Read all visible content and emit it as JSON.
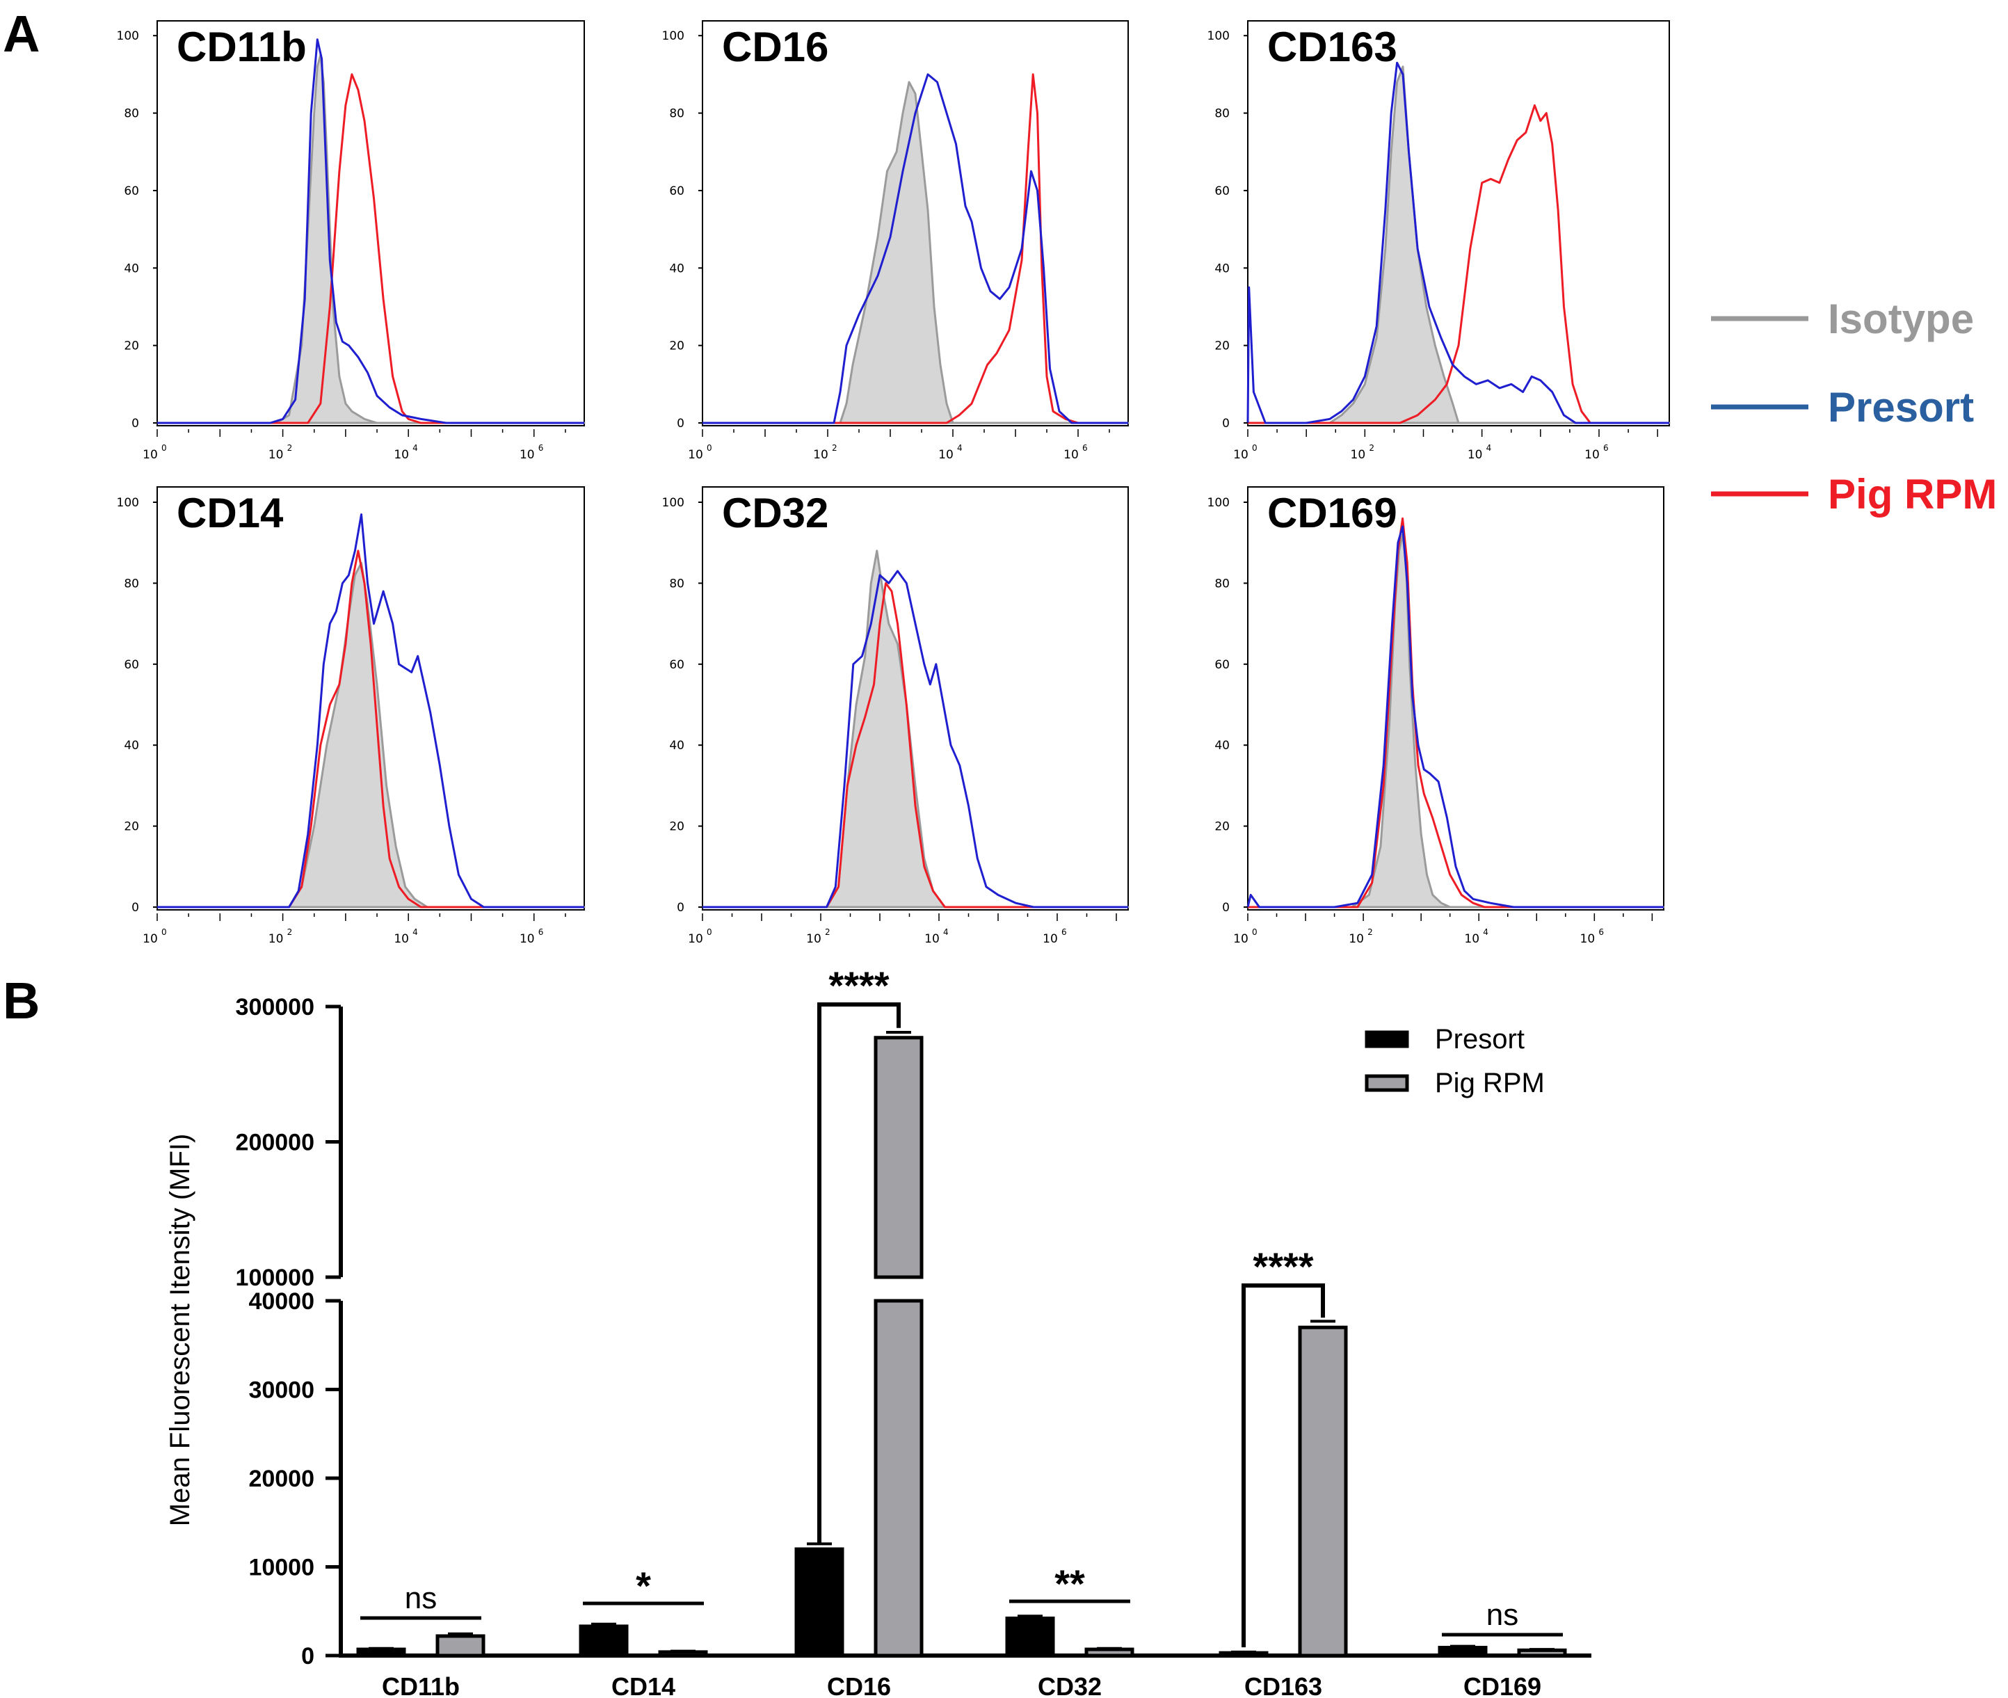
{
  "panel_labels": {
    "a": "A",
    "b": "B"
  },
  "histogram_legend": [
    {
      "label": "Isotype",
      "color": "#999999"
    },
    {
      "label": "Presort",
      "color": "#2a5fa0"
    },
    {
      "label": "Pig RPM",
      "color": "#ee1c24"
    }
  ],
  "colors": {
    "isotype_fill": "#d6d6d6",
    "isotype_line": "#9b9b9b",
    "presort_line": "#1f1fd0",
    "pigrpm_line": "#ee1c24",
    "presort_bar": "#000000",
    "pigrpm_bar": "#a2a2a6"
  },
  "chart_data": [
    {
      "type": "area",
      "panel": "A",
      "title": "CD11b",
      "xscale": "log10",
      "xlim": [
        0,
        6.8
      ],
      "ylim": [
        0,
        100
      ],
      "yticks": [
        "0",
        "20",
        "40",
        "60",
        "80",
        "100"
      ],
      "xticks": [
        {
          "base": "10",
          "exp": "0"
        },
        {
          "base": "10",
          "exp": "2"
        },
        {
          "base": "10",
          "exp": "4"
        },
        {
          "base": "10",
          "exp": "6"
        }
      ],
      "series": [
        {
          "name": "Isotype",
          "x": [
            0,
            1.9,
            2.1,
            2.3,
            2.4,
            2.5,
            2.55,
            2.6,
            2.65,
            2.7,
            2.75,
            2.8,
            2.9,
            3.0,
            3.1,
            3.3,
            3.5,
            6.8
          ],
          "y": [
            0,
            0,
            2,
            20,
            50,
            80,
            92,
            95,
            88,
            70,
            50,
            30,
            12,
            5,
            3,
            1,
            0,
            0
          ]
        },
        {
          "name": "Presort",
          "x": [
            0,
            1.8,
            2.0,
            2.2,
            2.35,
            2.45,
            2.55,
            2.62,
            2.68,
            2.75,
            2.85,
            2.95,
            3.05,
            3.2,
            3.35,
            3.5,
            3.7,
            3.9,
            4.2,
            4.6,
            6.8
          ],
          "y": [
            0,
            0,
            1,
            6,
            32,
            80,
            99,
            94,
            70,
            42,
            26,
            21,
            20,
            17,
            13,
            7,
            4,
            2,
            1,
            0,
            0
          ]
        },
        {
          "name": "Pig RPM",
          "x": [
            0,
            2.4,
            2.6,
            2.75,
            2.9,
            3.0,
            3.1,
            3.2,
            3.3,
            3.45,
            3.6,
            3.75,
            3.9,
            4.0,
            4.2,
            6.8
          ],
          "y": [
            0,
            0,
            5,
            30,
            65,
            82,
            90,
            86,
            78,
            58,
            32,
            12,
            3,
            1,
            0,
            0
          ]
        }
      ]
    },
    {
      "type": "area",
      "panel": "A",
      "title": "CD16",
      "xscale": "log10",
      "xlim": [
        0,
        6.8
      ],
      "ylim": [
        0,
        100
      ],
      "yticks": [
        "0",
        "20",
        "40",
        "60",
        "80",
        "100"
      ],
      "xticks": [
        {
          "base": "10",
          "exp": "0"
        },
        {
          "base": "10",
          "exp": "2"
        },
        {
          "base": "10",
          "exp": "4"
        },
        {
          "base": "10",
          "exp": "6"
        }
      ],
      "series": [
        {
          "name": "Isotype",
          "x": [
            0,
            2.2,
            2.3,
            2.4,
            2.6,
            2.8,
            2.95,
            3.1,
            3.2,
            3.3,
            3.4,
            3.5,
            3.6,
            3.7,
            3.8,
            3.9,
            4.0,
            6.8
          ],
          "y": [
            0,
            0,
            5,
            15,
            30,
            48,
            65,
            70,
            80,
            88,
            85,
            70,
            55,
            30,
            15,
            5,
            0,
            0
          ]
        },
        {
          "name": "Presort",
          "x": [
            0,
            2.1,
            2.2,
            2.3,
            2.5,
            2.8,
            3.0,
            3.2,
            3.4,
            3.6,
            3.75,
            3.9,
            4.05,
            4.2,
            4.3,
            4.45,
            4.6,
            4.75,
            4.9,
            5.1,
            5.25,
            5.35,
            5.45,
            5.55,
            5.7,
            5.9,
            6.8
          ],
          "y": [
            0,
            0,
            8,
            20,
            28,
            38,
            48,
            65,
            80,
            90,
            88,
            80,
            72,
            56,
            52,
            40,
            34,
            32,
            35,
            45,
            65,
            60,
            40,
            14,
            3,
            0,
            0
          ]
        },
        {
          "name": "Pig RPM",
          "x": [
            0,
            3.9,
            4.1,
            4.3,
            4.55,
            4.7,
            4.9,
            5.1,
            5.2,
            5.28,
            5.35,
            5.42,
            5.5,
            5.6,
            5.8,
            6.0,
            6.8
          ],
          "y": [
            0,
            0,
            2,
            5,
            15,
            18,
            24,
            42,
            70,
            90,
            80,
            40,
            12,
            3,
            1,
            0,
            0
          ]
        }
      ]
    },
    {
      "type": "area",
      "panel": "A",
      "title": "CD163",
      "xscale": "log10",
      "xlim": [
        0,
        7.2
      ],
      "ylim": [
        0,
        100
      ],
      "yticks": [
        "0",
        "20",
        "40",
        "60",
        "80",
        "100"
      ],
      "xticks": [
        {
          "base": "10",
          "exp": "0"
        },
        {
          "base": "10",
          "exp": "2"
        },
        {
          "base": "10",
          "exp": "4"
        },
        {
          "base": "10",
          "exp": "6"
        }
      ],
      "series": [
        {
          "name": "Isotype",
          "x": [
            0,
            1.4,
            1.6,
            1.8,
            2.0,
            2.2,
            2.35,
            2.45,
            2.55,
            2.65,
            2.75,
            2.9,
            3.05,
            3.2,
            3.35,
            3.5,
            3.6,
            7.2
          ],
          "y": [
            0,
            0,
            2,
            5,
            10,
            22,
            45,
            70,
            88,
            92,
            70,
            45,
            30,
            20,
            12,
            5,
            0,
            0
          ]
        },
        {
          "name": "Presort",
          "x": [
            0,
            0.02,
            0.1,
            0.3,
            1.0,
            1.4,
            1.6,
            1.8,
            2.0,
            2.2,
            2.35,
            2.45,
            2.55,
            2.65,
            2.75,
            2.9,
            3.1,
            3.3,
            3.5,
            3.7,
            3.9,
            4.1,
            4.3,
            4.5,
            4.7,
            4.85,
            5.0,
            5.2,
            5.4,
            5.6,
            7.2
          ],
          "y": [
            0,
            35,
            8,
            0,
            0,
            1,
            3,
            6,
            12,
            25,
            55,
            80,
            93,
            90,
            70,
            45,
            30,
            22,
            15,
            12,
            10,
            11,
            9,
            10,
            8,
            12,
            11,
            8,
            2,
            0,
            0
          ]
        },
        {
          "name": "Pig RPM",
          "x": [
            0,
            2.6,
            2.9,
            3.2,
            3.4,
            3.6,
            3.8,
            4.0,
            4.15,
            4.3,
            4.45,
            4.6,
            4.75,
            4.9,
            5.0,
            5.1,
            5.2,
            5.3,
            5.4,
            5.55,
            5.7,
            5.85,
            6.0,
            7.2
          ],
          "y": [
            0,
            0,
            2,
            6,
            10,
            20,
            45,
            62,
            63,
            62,
            68,
            73,
            75,
            82,
            78,
            80,
            72,
            55,
            30,
            10,
            3,
            0,
            0,
            0
          ]
        }
      ]
    },
    {
      "type": "area",
      "panel": "A",
      "title": "CD14",
      "xscale": "log10",
      "xlim": [
        0,
        6.8
      ],
      "ylim": [
        0,
        100
      ],
      "yticks": [
        "0",
        "20",
        "40",
        "60",
        "80",
        "100"
      ],
      "xticks": [
        {
          "base": "10",
          "exp": "0"
        },
        {
          "base": "10",
          "exp": "2"
        },
        {
          "base": "10",
          "exp": "4"
        },
        {
          "base": "10",
          "exp": "6"
        }
      ],
      "series": [
        {
          "name": "Isotype",
          "x": [
            0,
            2.1,
            2.3,
            2.5,
            2.7,
            2.9,
            3.05,
            3.15,
            3.25,
            3.35,
            3.5,
            3.65,
            3.8,
            3.95,
            4.1,
            4.3,
            6.8
          ],
          "y": [
            0,
            0,
            5,
            20,
            40,
            55,
            72,
            82,
            85,
            75,
            55,
            30,
            15,
            5,
            2,
            0,
            0
          ]
        },
        {
          "name": "Presort",
          "x": [
            0,
            2.1,
            2.25,
            2.4,
            2.55,
            2.65,
            2.75,
            2.85,
            2.95,
            3.05,
            3.15,
            3.25,
            3.35,
            3.45,
            3.6,
            3.75,
            3.85,
            3.95,
            4.05,
            4.15,
            4.25,
            4.35,
            4.5,
            4.65,
            4.8,
            5.0,
            5.2,
            6.8
          ],
          "y": [
            0,
            0,
            4,
            18,
            40,
            60,
            70,
            73,
            80,
            82,
            88,
            97,
            80,
            70,
            78,
            70,
            60,
            59,
            58,
            62,
            55,
            48,
            35,
            20,
            8,
            2,
            0,
            0
          ]
        },
        {
          "name": "Pig RPM",
          "x": [
            0,
            2.1,
            2.3,
            2.45,
            2.6,
            2.75,
            2.9,
            3.0,
            3.1,
            3.2,
            3.3,
            3.4,
            3.5,
            3.6,
            3.7,
            3.85,
            4.0,
            4.2,
            6.8
          ],
          "y": [
            0,
            0,
            5,
            20,
            40,
            50,
            55,
            65,
            80,
            88,
            80,
            65,
            45,
            25,
            12,
            5,
            2,
            0,
            0
          ]
        }
      ]
    },
    {
      "type": "area",
      "panel": "A",
      "title": "CD32",
      "xscale": "log10",
      "xlim": [
        0,
        7.2
      ],
      "ylim": [
        0,
        100
      ],
      "yticks": [
        "0",
        "20",
        "40",
        "60",
        "80",
        "100"
      ],
      "xticks": [
        {
          "base": "10",
          "exp": "0"
        },
        {
          "base": "10",
          "exp": "2"
        },
        {
          "base": "10",
          "exp": "4"
        },
        {
          "base": "10",
          "exp": "6"
        }
      ],
      "series": [
        {
          "name": "Isotype",
          "x": [
            0,
            2.1,
            2.3,
            2.45,
            2.6,
            2.75,
            2.85,
            2.95,
            3.05,
            3.15,
            3.3,
            3.45,
            3.6,
            3.75,
            3.9,
            4.1,
            7.2
          ],
          "y": [
            0,
            0,
            5,
            30,
            50,
            62,
            80,
            88,
            78,
            70,
            65,
            50,
            30,
            12,
            4,
            0,
            0
          ]
        },
        {
          "name": "Presort",
          "x": [
            0,
            2.1,
            2.25,
            2.4,
            2.55,
            2.7,
            2.85,
            3.0,
            3.15,
            3.3,
            3.45,
            3.6,
            3.75,
            3.85,
            3.95,
            4.05,
            4.2,
            4.35,
            4.5,
            4.65,
            4.8,
            5.0,
            5.3,
            5.6,
            7.2
          ],
          "y": [
            0,
            0,
            5,
            30,
            60,
            62,
            70,
            82,
            80,
            83,
            80,
            70,
            60,
            55,
            60,
            52,
            40,
            35,
            25,
            12,
            5,
            3,
            1,
            0,
            0
          ]
        },
        {
          "name": "Pig RPM",
          "x": [
            0,
            2.1,
            2.3,
            2.45,
            2.6,
            2.75,
            2.9,
            3.0,
            3.1,
            3.2,
            3.3,
            3.45,
            3.6,
            3.75,
            3.9,
            4.1,
            7.2
          ],
          "y": [
            0,
            0,
            5,
            30,
            40,
            47,
            55,
            70,
            80,
            78,
            70,
            50,
            25,
            10,
            4,
            0,
            0
          ]
        }
      ]
    },
    {
      "type": "area",
      "panel": "A",
      "title": "CD169",
      "xscale": "log10",
      "xlim": [
        0,
        7.2
      ],
      "ylim": [
        0,
        100
      ],
      "yticks": [
        "0",
        "20",
        "40",
        "60",
        "80",
        "100"
      ],
      "xticks": [
        {
          "base": "10",
          "exp": "0"
        },
        {
          "base": "10",
          "exp": "2"
        },
        {
          "base": "10",
          "exp": "4"
        },
        {
          "base": "10",
          "exp": "6"
        }
      ],
      "series": [
        {
          "name": "Isotype",
          "x": [
            0,
            1.8,
            2.1,
            2.3,
            2.45,
            2.55,
            2.62,
            2.68,
            2.74,
            2.8,
            2.9,
            3.0,
            3.1,
            3.2,
            3.35,
            3.5,
            7.2
          ],
          "y": [
            0,
            0,
            3,
            15,
            45,
            75,
            88,
            92,
            85,
            60,
            35,
            18,
            8,
            3,
            1,
            0,
            0
          ]
        },
        {
          "name": "Presort",
          "x": [
            0,
            0.05,
            0.2,
            1.5,
            1.9,
            2.15,
            2.35,
            2.5,
            2.6,
            2.68,
            2.76,
            2.85,
            2.95,
            3.05,
            3.15,
            3.3,
            3.45,
            3.6,
            3.75,
            3.9,
            4.2,
            4.6,
            5.0,
            7.2
          ],
          "y": [
            0,
            3,
            0,
            0,
            1,
            8,
            35,
            70,
            90,
            94,
            80,
            52,
            40,
            34,
            33,
            31,
            22,
            10,
            4,
            2,
            1,
            0,
            0,
            0
          ]
        },
        {
          "name": "Pig RPM",
          "x": [
            0,
            1.9,
            2.15,
            2.35,
            2.5,
            2.6,
            2.68,
            2.76,
            2.85,
            2.95,
            3.05,
            3.2,
            3.35,
            3.5,
            3.7,
            3.9,
            4.1,
            7.2
          ],
          "y": [
            0,
            0,
            6,
            30,
            65,
            88,
            96,
            85,
            55,
            35,
            28,
            22,
            15,
            8,
            3,
            1,
            0,
            0
          ]
        }
      ]
    },
    {
      "type": "bar",
      "panel": "B",
      "ylabel": "Mean Fluorescent Itensity (MFI)",
      "categories": [
        "CD11b",
        "CD14",
        "CD16",
        "CD32",
        "CD163",
        "CD169"
      ],
      "series": [
        {
          "name": "Presort",
          "values": [
            700,
            3300,
            12000,
            4200,
            300,
            900
          ],
          "errors": [
            100,
            250,
            600,
            250,
            100,
            150
          ]
        },
        {
          "name": "Pig RPM",
          "values": [
            2200,
            400,
            277000,
            700,
            37000,
            600
          ],
          "errors": [
            250,
            100,
            4000,
            100,
            700,
            100
          ]
        }
      ],
      "y_lower_range": [
        0,
        40000
      ],
      "y_upper_range": [
        100000,
        300000
      ],
      "y_lower_ticks": [
        "0",
        "10000",
        "20000",
        "30000",
        "40000"
      ],
      "y_upper_ticks": [
        "100000",
        "200000",
        "300000"
      ],
      "significance": [
        "ns",
        "*",
        "****",
        "**",
        "****",
        "ns"
      ],
      "legend_position": "top-right"
    }
  ]
}
